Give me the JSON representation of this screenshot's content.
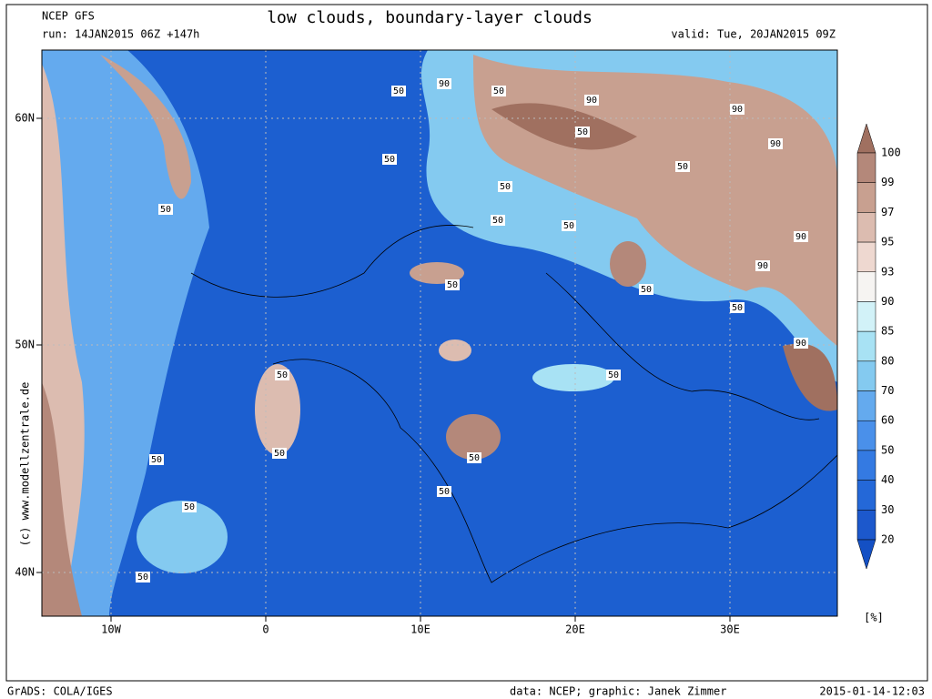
{
  "header": {
    "model": "NCEP GFS",
    "run": "run: 14JAN2015 06Z +147h",
    "title": "low clouds, boundary-layer clouds",
    "valid": "valid: Tue, 20JAN2015 09Z"
  },
  "map": {
    "lat_labels": [
      "60N",
      "50N",
      "40N"
    ],
    "lon_labels": [
      "10W",
      "0",
      "10E",
      "20E",
      "30E"
    ],
    "contour_labels": [
      "50",
      "90",
      "50",
      "90",
      "50",
      "90",
      "90",
      "50",
      "50",
      "50",
      "50",
      "50",
      "90",
      "90",
      "50",
      "50",
      "50",
      "90",
      "50",
      "50",
      "50",
      "50",
      "50",
      "50",
      "50",
      "50",
      "50"
    ]
  },
  "legend": {
    "levels": [
      100,
      99,
      97,
      95,
      93,
      90,
      85,
      80,
      70,
      60,
      50,
      40,
      30,
      20
    ],
    "unit": "[%]",
    "colors": [
      "#a07060",
      "#b4887a",
      "#c8a090",
      "#dcbcb0",
      "#eed8d0",
      "#f6f4f2",
      "#d2f2f8",
      "#a8e2f4",
      "#84caf0",
      "#64aaee",
      "#4a90ea",
      "#347ae2",
      "#2468d8",
      "#1c58cc",
      "#1450c4"
    ]
  },
  "footer": {
    "copyright": "(c) www.modellzentrale.de",
    "grads": "GrADS: COLA/IGES",
    "credits": "data: NCEP; graphic: Janek Zimmer",
    "timestamp": "2015-01-14-12:03"
  }
}
